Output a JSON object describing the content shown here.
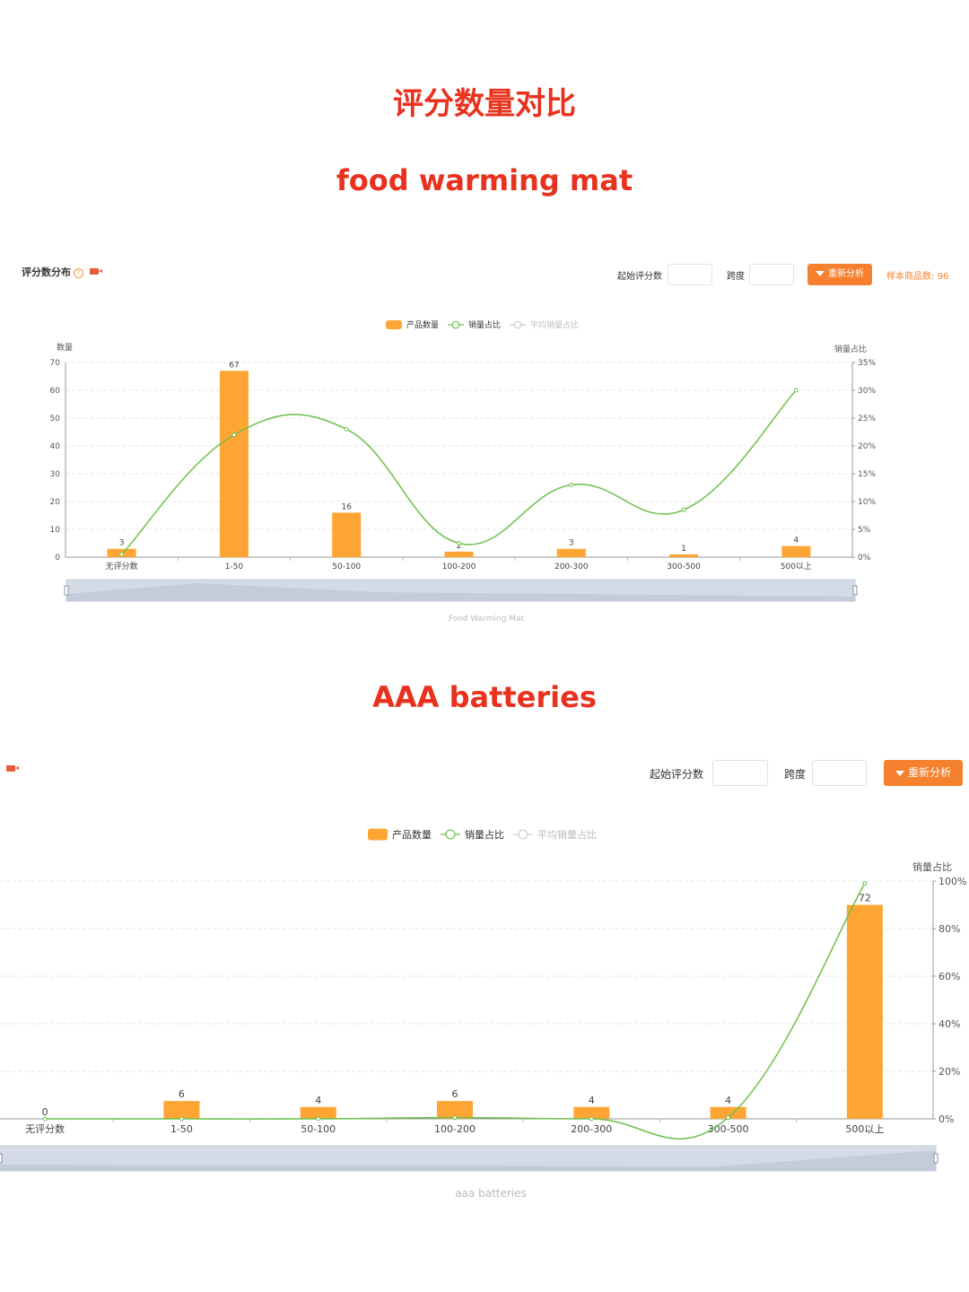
{
  "page": {
    "main_title": "评分数量对比",
    "section1_title": "food warming mat",
    "section2_title": "AAA batteries"
  },
  "panel1": {
    "heading": "评分数分布",
    "help_glyph": "?",
    "start_score_label": "起始评分数",
    "span_label": "跨度",
    "reanalyze_label": "重新分析",
    "sample_label": "样本商品数:",
    "sample_value": "96"
  },
  "panel2": {
    "start_score_label": "起始评分数",
    "span_label": "跨度",
    "reanalyze_label": "重新分析"
  },
  "colors": {
    "title_red": "#e8321e",
    "bar_orange": "#ffa534",
    "line_green": "#6cc04a",
    "button_orange": "#f5812f",
    "slider_fill": "#d5dbe6"
  },
  "chart_data": [
    {
      "type": "bar",
      "legend": [
        "产品数量",
        "销量占比",
        "平均销量占比"
      ],
      "categories": [
        "无评分数",
        "1-50",
        "50-100",
        "100-200",
        "200-300",
        "300-500",
        "500以上"
      ],
      "ylabel": "数量",
      "y2label": "销量占比",
      "ylim": [
        0,
        70
      ],
      "y2lim": [
        0,
        35
      ],
      "yticks": [
        "0",
        "10",
        "20",
        "30",
        "40",
        "50",
        "60",
        "70"
      ],
      "y2ticks": [
        "0%",
        "5%",
        "10%",
        "15%",
        "20%",
        "25%",
        "30%",
        "35%"
      ],
      "series": [
        {
          "name": "产品数量",
          "type": "bar",
          "values": [
            3,
            67,
            16,
            2,
            3,
            1,
            4
          ]
        },
        {
          "name": "销量占比",
          "type": "line",
          "values": [
            0.5,
            22,
            23,
            2.5,
            13,
            8.5,
            30
          ]
        }
      ],
      "caption": "Food Warming Mat"
    },
    {
      "type": "bar",
      "legend": [
        "产品数量",
        "销量占比",
        "平均销量占比"
      ],
      "categories": [
        "无评分数",
        "1-50",
        "50-100",
        "100-200",
        "200-300",
        "300-500",
        "500以上"
      ],
      "y2label": "销量占比",
      "ylim": [
        0,
        80
      ],
      "y2lim": [
        0,
        100
      ],
      "y2ticks": [
        "0%",
        "20%",
        "40%",
        "60%",
        "80%",
        "100%"
      ],
      "series": [
        {
          "name": "产品数量",
          "type": "bar",
          "values": [
            0,
            6,
            4,
            6,
            4,
            4,
            72
          ]
        },
        {
          "name": "销量占比",
          "type": "line",
          "values": [
            0,
            0,
            0,
            0.5,
            0,
            0.5,
            99
          ]
        }
      ],
      "caption": "aaa batteries"
    }
  ]
}
